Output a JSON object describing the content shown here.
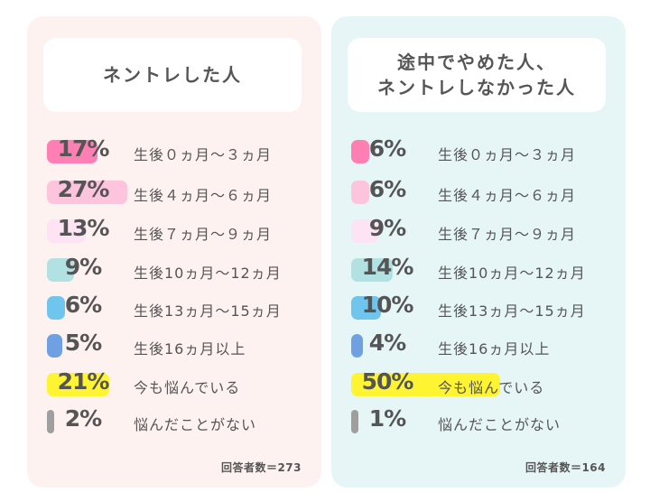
{
  "colors": [
    "#ff7fb4",
    "#ffc4dd",
    "#fde3f4",
    "#b1e1e2",
    "#70c5ef",
    "#6fa1e2",
    "#fff432",
    "#9f9f9f"
  ],
  "chart_data": [
    {
      "type": "bar",
      "title": "ネントレした人",
      "categories": [
        "生後０ヵ月～３ヵ月",
        "生後４ヵ月～６ヵ月",
        "生後７ヵ月～９ヵ月",
        "生後10ヵ月～12ヵ月",
        "生後13ヵ月～15ヵ月",
        "生後16ヵ月以上",
        "今も悩んでいる",
        "悩んだことがない"
      ],
      "values": [
        17,
        27,
        13,
        9,
        6,
        5,
        21,
        2
      ],
      "value_labels": [
        "17%",
        "27%",
        "13%",
        "9%",
        "6%",
        "5%",
        "21%",
        "2%"
      ],
      "respondents": "回答者数＝273"
    },
    {
      "type": "bar",
      "title": "途中でやめた人、\nネントレしなかった人",
      "categories": [
        "生後０ヵ月～３ヵ月",
        "生後４ヵ月～６ヵ月",
        "生後７ヵ月～９ヵ月",
        "生後10ヵ月～12ヵ月",
        "生後13ヵ月～15ヵ月",
        "生後16ヵ月以上",
        "今も悩んでいる",
        "悩んだことがない"
      ],
      "values": [
        6,
        6,
        9,
        14,
        10,
        4,
        50,
        1
      ],
      "value_labels": [
        "6%",
        "6%",
        "9%",
        "14%",
        "10%",
        "4%",
        "50%",
        "1%"
      ],
      "respondents": "回答者数＝164"
    }
  ]
}
